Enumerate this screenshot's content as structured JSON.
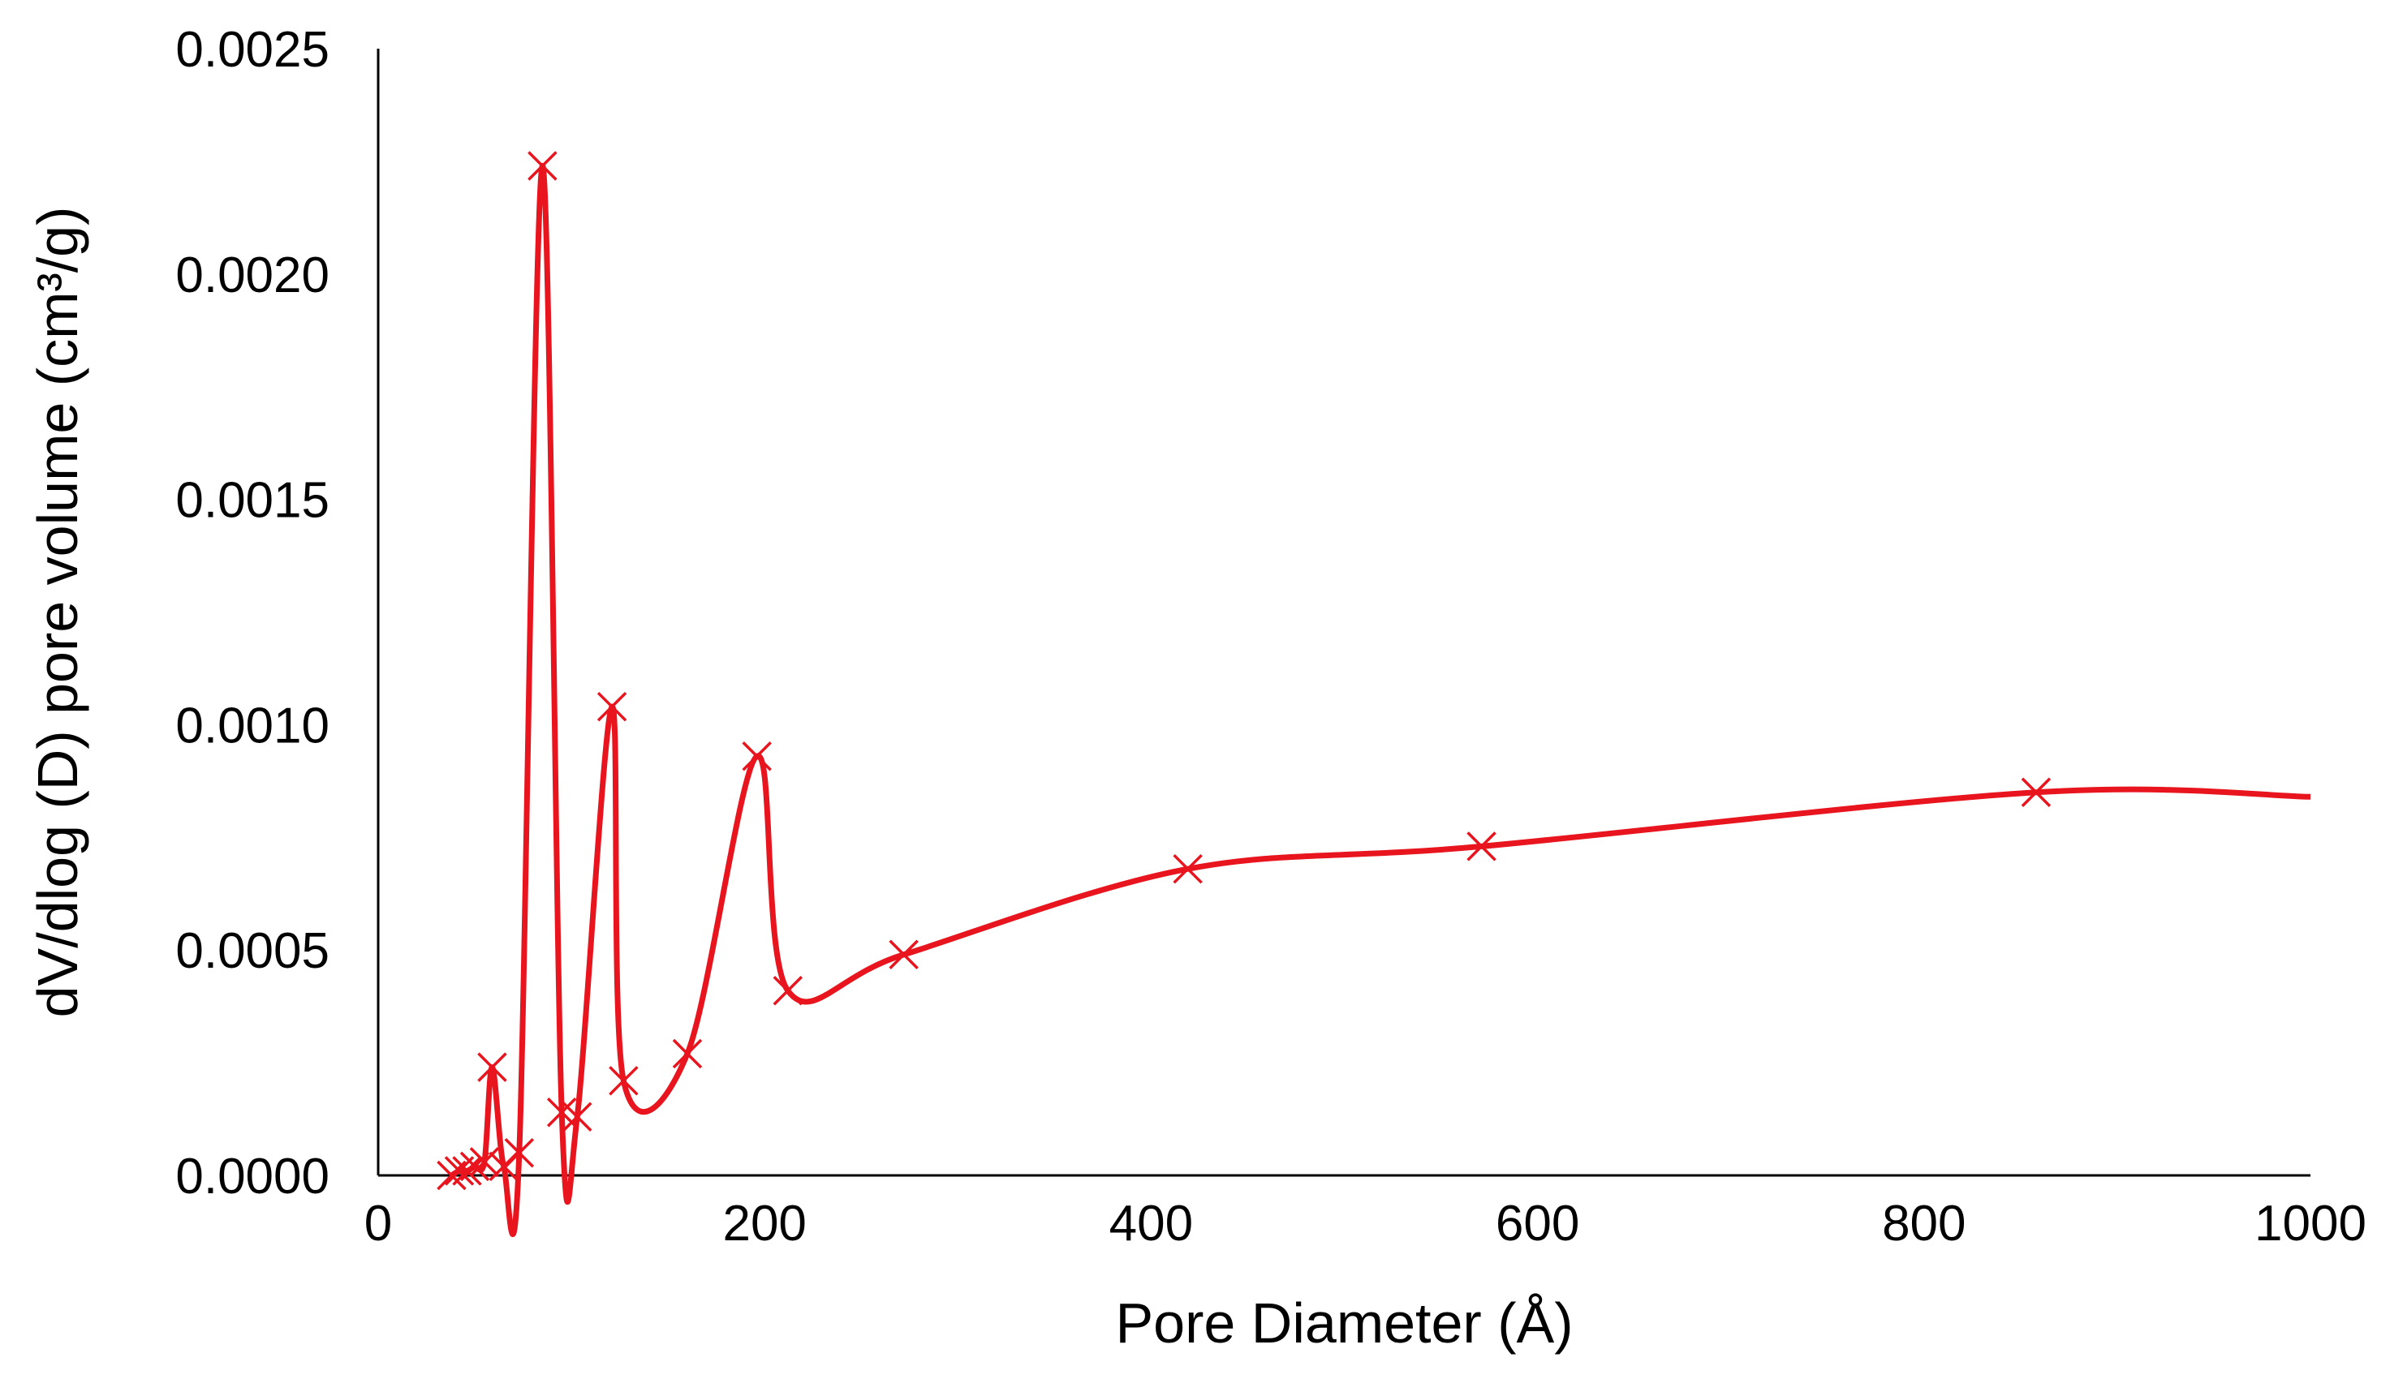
{
  "chart_data": {
    "type": "scatter",
    "title": "",
    "xlabel": "Pore Diameter (Å)",
    "ylabel": "dV/dlog (D) pore volume (cm³/g)",
    "xlim": [
      0,
      1000
    ],
    "ylim": [
      0,
      0.0025
    ],
    "x_ticks": [
      "0",
      "200",
      "400",
      "600",
      "800",
      "1000"
    ],
    "y_ticks": [
      "0.0000",
      "0.0005",
      "0.0010",
      "0.0015",
      "0.0020",
      "0.0025"
    ],
    "grid": false,
    "legend": "none",
    "marker": "x",
    "smoothed_line": true,
    "color": "#e8141e",
    "series": [
      {
        "x": [
          38,
          42,
          46,
          50,
          55,
          59,
          65,
          73,
          85,
          95,
          103,
          121,
          127,
          160,
          196,
          212,
          272,
          419,
          571,
          858
        ],
        "y": [
          0.0,
          1e-05,
          1e-05,
          2e-05,
          3e-05,
          0.00024,
          2e-05,
          5e-05,
          0.00224,
          0.00014,
          0.00013,
          0.00104,
          0.00021,
          0.00027,
          0.00093,
          0.00041,
          0.00049,
          0.00068,
          0.00073,
          0.00085
        ]
      }
    ],
    "line_end": {
      "x": 1000,
      "y": 0.00084
    }
  }
}
